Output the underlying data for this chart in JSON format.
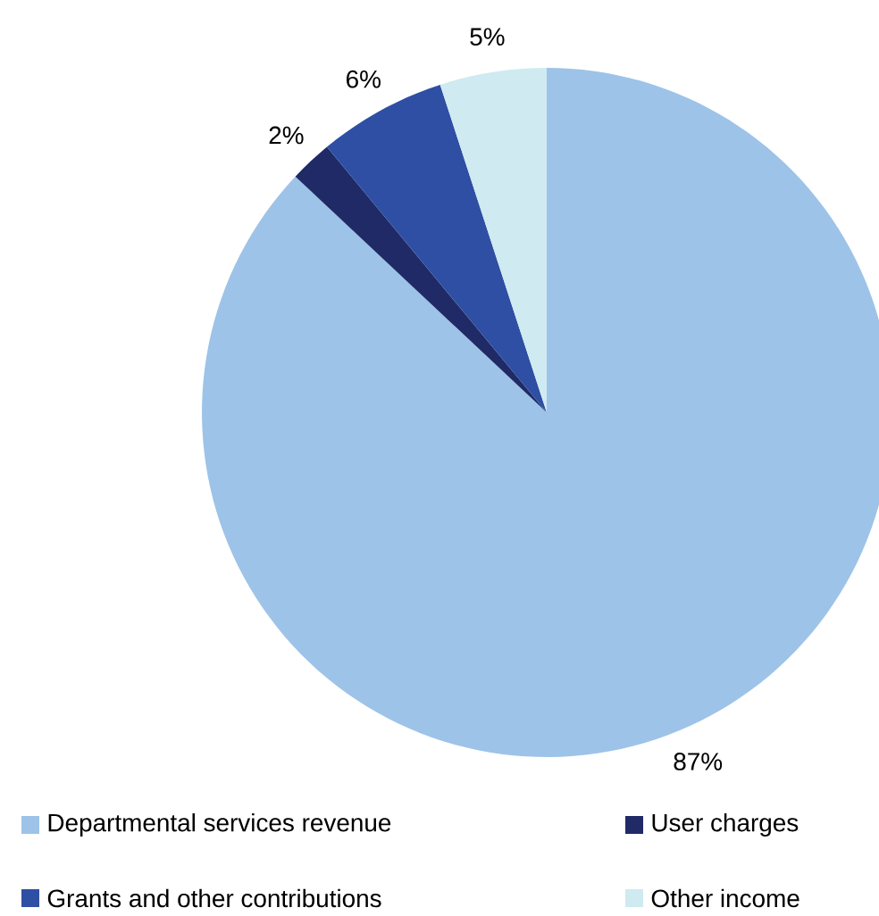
{
  "chart_data": {
    "type": "pie",
    "categories": [
      "Departmental services revenue",
      "User charges",
      "Grants and other contributions",
      "Other income"
    ],
    "values": [
      87,
      2,
      6,
      5
    ],
    "colors": [
      "#9dc3e8",
      "#1f2a66",
      "#2e4fa3",
      "#cfeaf1"
    ],
    "value_labels": [
      "87%",
      "2%",
      "6%",
      "5%"
    ],
    "legend": "bottom"
  }
}
